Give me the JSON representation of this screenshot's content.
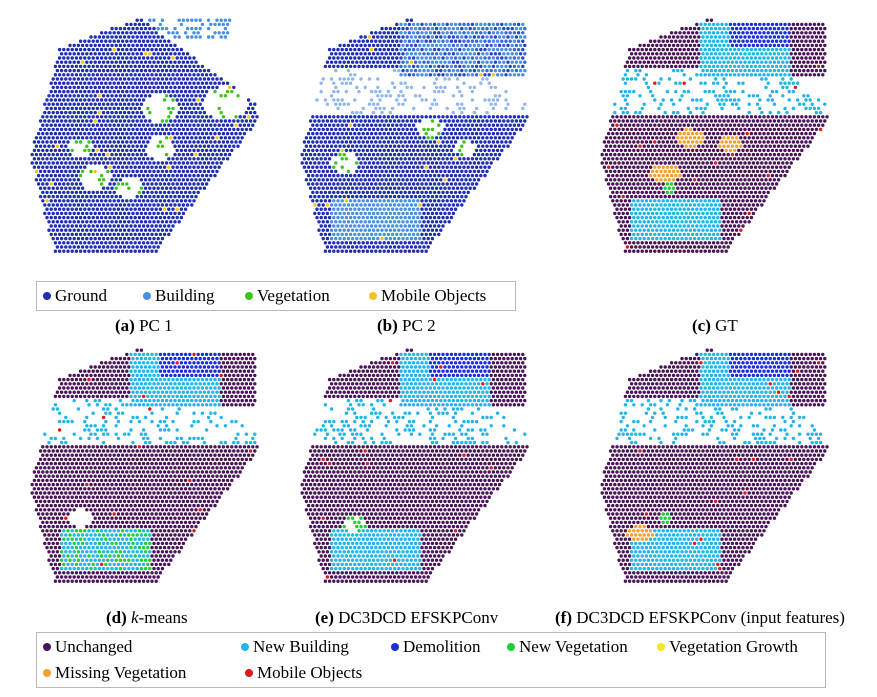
{
  "colors": {
    "ground": "#1f2fb0",
    "building": "#4a90e2",
    "vegetation": "#3cc41e",
    "mobile": "#f5c21b",
    "unchanged": "#4a1458",
    "new_building": "#22b5ea",
    "demolition": "#1a2fd8",
    "new_vegetation": "#22cc33",
    "vegetation_growth": "#f6e81a",
    "missing_vegetation": "#f4a02c",
    "mobile_objects": "#e01818"
  },
  "legend_top": {
    "items": [
      {
        "label": "Ground",
        "color": "#1f2fb0"
      },
      {
        "label": "Building",
        "color": "#4a90e2"
      },
      {
        "label": "Vegetation",
        "color": "#3cc41e"
      },
      {
        "label": "Mobile Objects",
        "color": "#f5c21b"
      }
    ]
  },
  "legend_bottom": {
    "items": [
      {
        "label": "Unchanged",
        "color": "#4a1458"
      },
      {
        "label": "New Building",
        "color": "#22b5ea"
      },
      {
        "label": "Demolition",
        "color": "#1a2fd8"
      },
      {
        "label": "New Vegetation",
        "color": "#22cc33"
      },
      {
        "label": "Vegetation Growth",
        "color": "#f6e81a"
      },
      {
        "label": "Missing Vegetation",
        "color": "#f4a02c"
      },
      {
        "label": "Mobile Objects",
        "color": "#e01818"
      }
    ]
  },
  "captions": {
    "a": {
      "letter": "(a)",
      "text": " PC 1"
    },
    "b": {
      "letter": "(b)",
      "text": " PC 2"
    },
    "c": {
      "letter": "(c)",
      "text": " GT"
    },
    "d": {
      "letter": "(d)",
      "text_italic": " k",
      "text": "-means"
    },
    "e": {
      "letter": "(e)",
      "text": " DC3DCD EFSKPConv"
    },
    "f": {
      "letter": "(f)",
      "text": " DC3DCD EFSKPConv (input features)"
    }
  }
}
